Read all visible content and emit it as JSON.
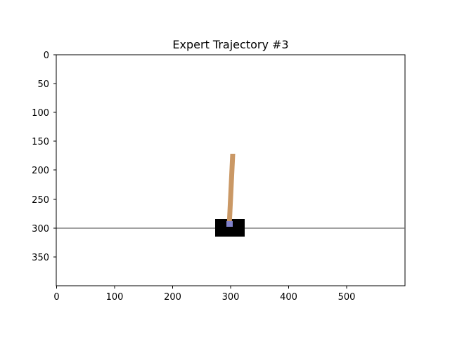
{
  "figure": {
    "title": "Expert Trajectory #3"
  },
  "axes": {
    "x_ticks": [
      "0",
      "100",
      "200",
      "300",
      "400",
      "500"
    ],
    "y_ticks": [
      "0",
      "50",
      "100",
      "150",
      "200",
      "250",
      "300",
      "350"
    ],
    "xlim": [
      0,
      600
    ],
    "ylim": [
      0,
      400
    ],
    "y_inverted": true
  },
  "scene": {
    "environment": "cartpole",
    "track_y": 300,
    "cart_x": 300,
    "cart_color": "#000000",
    "pole_color": "#ca9865",
    "axle_color": "#8182cb",
    "track_color": "#6b6b6b",
    "pole_tilt_fraction": 0.02
  }
}
